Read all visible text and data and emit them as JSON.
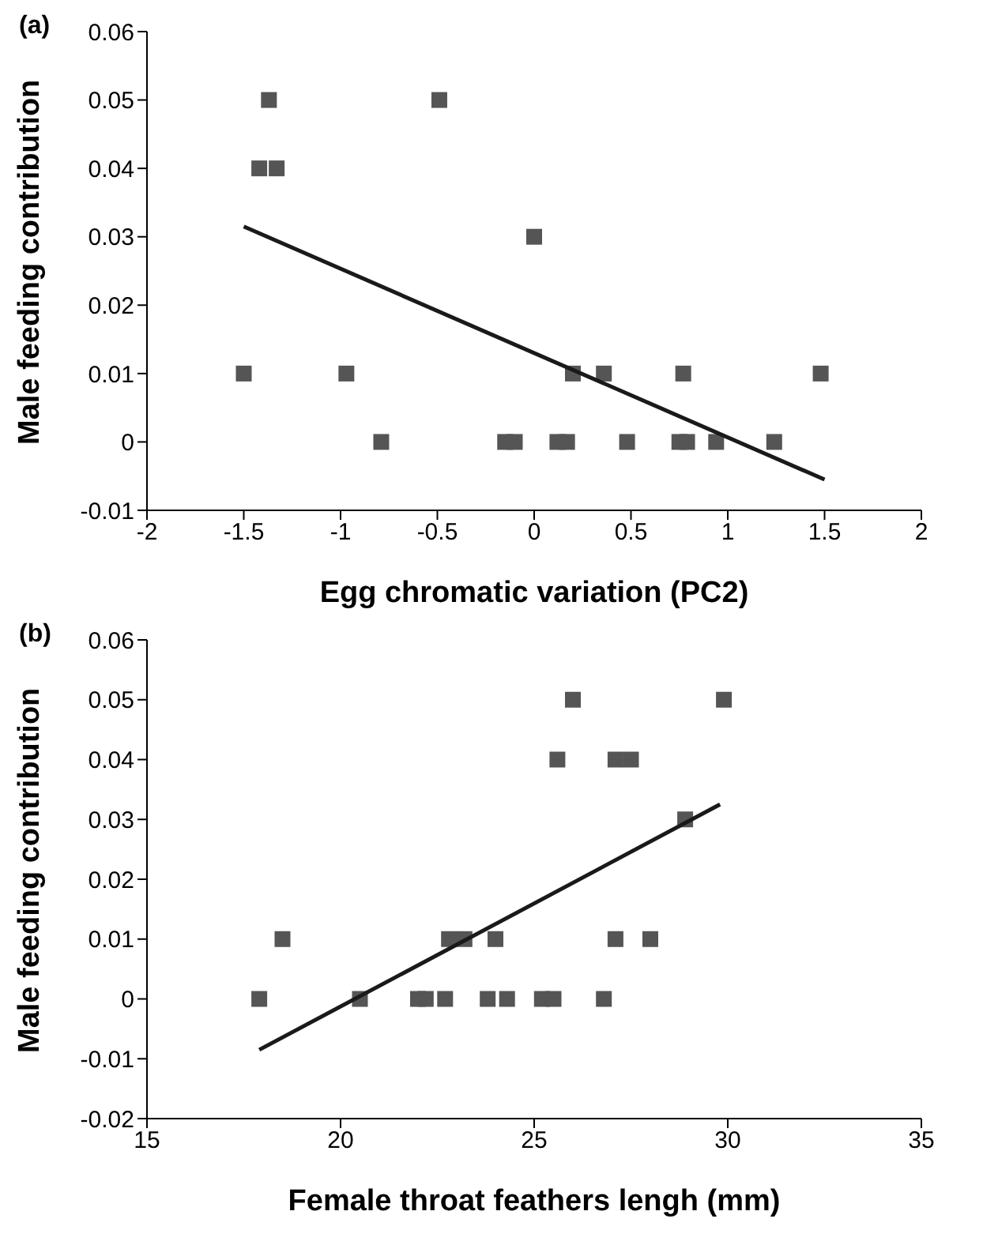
{
  "chart_data": [
    {
      "type": "scatter",
      "title": "(a)",
      "xlabel": "Egg chromatic variation (PC2)",
      "ylabel": "Male feeding contribution",
      "xlim": [
        -2,
        2
      ],
      "xticks": [
        -2,
        -1.5,
        -1,
        -0.5,
        0,
        0.5,
        1,
        1.5,
        2
      ],
      "ylim": [
        -0.01,
        0.06
      ],
      "yticks": [
        -0.01,
        0,
        0.01,
        0.02,
        0.03,
        0.04,
        0.05,
        0.06
      ],
      "marker": "square",
      "series": [
        {
          "type": "scatter",
          "color": "#555555",
          "x": [
            -1.37,
            -0.49,
            -1.42,
            -1.33,
            0.0,
            -1.5,
            -0.97,
            0.2,
            0.36,
            0.77,
            1.48,
            -0.79,
            -0.15,
            -0.1,
            0.12,
            0.17,
            0.48,
            0.75,
            0.79,
            0.94,
            1.24
          ],
          "values": [
            0.05,
            0.05,
            0.04,
            0.04,
            0.03,
            0.01,
            0.01,
            0.01,
            0.01,
            0.01,
            0.01,
            0,
            0,
            0,
            0,
            0,
            0,
            0,
            0,
            0,
            0
          ]
        },
        {
          "type": "line",
          "color": "#1a1a1a",
          "marker": "none",
          "x": [
            -1.5,
            1.5
          ],
          "values": [
            0.0315,
            -0.0055
          ]
        }
      ]
    },
    {
      "type": "scatter",
      "title": "(b)",
      "xlabel": "Female throat feathers lengh (mm)",
      "ylabel": "Male feeding contribution",
      "xlim": [
        15,
        35
      ],
      "xticks": [
        15,
        20,
        25,
        30,
        35
      ],
      "ylim": [
        -0.02,
        0.06
      ],
      "yticks": [
        -0.02,
        -0.01,
        0,
        0.01,
        0.02,
        0.03,
        0.04,
        0.05,
        0.06
      ],
      "marker": "square",
      "series": [
        {
          "type": "scatter",
          "color": "#555555",
          "x": [
            26.0,
            29.9,
            25.6,
            27.1,
            27.5,
            28.9,
            18.5,
            22.8,
            23.2,
            24.0,
            27.1,
            28.0,
            17.9,
            20.5,
            22.0,
            22.2,
            22.7,
            23.8,
            24.3,
            25.2,
            25.5,
            26.8
          ],
          "values": [
            0.05,
            0.05,
            0.04,
            0.04,
            0.04,
            0.03,
            0.01,
            0.01,
            0.01,
            0.01,
            0.01,
            0.01,
            0,
            0,
            0,
            0,
            0,
            0,
            0,
            0,
            0,
            0
          ]
        },
        {
          "type": "line",
          "color": "#1a1a1a",
          "marker": "none",
          "x": [
            17.9,
            29.8
          ],
          "values": [
            -0.0085,
            0.0325
          ]
        }
      ]
    }
  ]
}
